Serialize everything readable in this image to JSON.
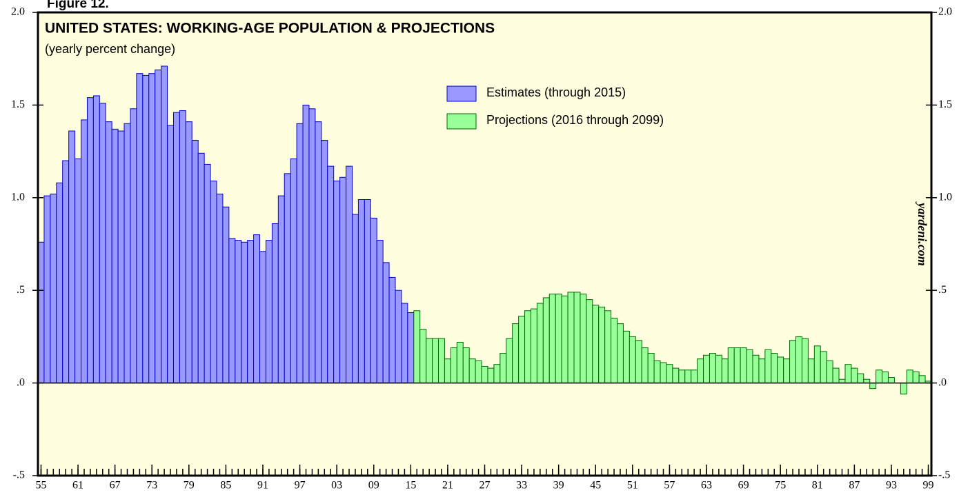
{
  "figure_label": "Figure 12.",
  "chart_data": {
    "type": "bar",
    "title": "UNITED STATES: WORKING-AGE POPULATION & PROJECTIONS",
    "subtitle": "(yearly percent change)",
    "watermark": "yardeni.com",
    "x": [
      1955,
      1956,
      1957,
      1958,
      1959,
      1960,
      1961,
      1962,
      1963,
      1964,
      1965,
      1966,
      1967,
      1968,
      1969,
      1970,
      1971,
      1972,
      1973,
      1974,
      1975,
      1976,
      1977,
      1978,
      1979,
      1980,
      1981,
      1982,
      1983,
      1984,
      1985,
      1986,
      1987,
      1988,
      1989,
      1990,
      1991,
      1992,
      1993,
      1994,
      1995,
      1996,
      1997,
      1998,
      1999,
      2000,
      2001,
      2002,
      2003,
      2004,
      2005,
      2006,
      2007,
      2008,
      2009,
      2010,
      2011,
      2012,
      2013,
      2014,
      2015,
      2016,
      2017,
      2018,
      2019,
      2020,
      2021,
      2022,
      2023,
      2024,
      2025,
      2026,
      2027,
      2028,
      2029,
      2030,
      2031,
      2032,
      2033,
      2034,
      2035,
      2036,
      2037,
      2038,
      2039,
      2040,
      2041,
      2042,
      2043,
      2044,
      2045,
      2046,
      2047,
      2048,
      2049,
      2050,
      2051,
      2052,
      2053,
      2054,
      2055,
      2056,
      2057,
      2058,
      2059,
      2060,
      2061,
      2062,
      2063,
      2064,
      2065,
      2066,
      2067,
      2068,
      2069,
      2070,
      2071,
      2072,
      2073,
      2074,
      2075,
      2076,
      2077,
      2078,
      2079,
      2080,
      2081,
      2082,
      2083,
      2084,
      2085,
      2086,
      2087,
      2088,
      2089,
      2090,
      2091,
      2092,
      2093,
      2094,
      2095,
      2096,
      2097,
      2098,
      2099
    ],
    "series": [
      {
        "name": "Estimates (through 2015)",
        "color": "#9999ff",
        "edge": "#0000cc",
        "values": [
          0.76,
          1.01,
          1.02,
          1.08,
          1.2,
          1.36,
          1.21,
          1.42,
          1.54,
          1.55,
          1.51,
          1.41,
          1.37,
          1.36,
          1.4,
          1.48,
          1.67,
          1.66,
          1.67,
          1.69,
          1.71,
          1.39,
          1.46,
          1.47,
          1.41,
          1.31,
          1.24,
          1.18,
          1.09,
          1.02,
          0.95,
          0.78,
          0.77,
          0.76,
          0.77,
          0.8,
          0.71,
          0.77,
          0.86,
          1.01,
          1.13,
          1.21,
          1.4,
          1.5,
          1.48,
          1.41,
          1.31,
          1.17,
          1.09,
          1.11,
          1.17,
          0.91,
          0.99,
          0.99,
          0.89,
          0.77,
          0.65,
          0.57,
          0.5,
          0.43,
          0.38,
          null,
          null,
          null,
          null,
          null,
          null,
          null,
          null,
          null,
          null,
          null,
          null,
          null,
          null,
          null,
          null,
          null,
          null,
          null,
          null,
          null,
          null,
          null,
          null,
          null,
          null,
          null,
          null,
          null,
          null,
          null,
          null,
          null,
          null,
          null,
          null,
          null,
          null,
          null,
          null,
          null,
          null,
          null,
          null,
          null,
          null,
          null,
          null,
          null,
          null,
          null,
          null,
          null,
          null,
          null,
          null,
          null,
          null,
          null,
          null,
          null,
          null,
          null,
          null,
          null,
          null,
          null,
          null,
          null,
          null,
          null,
          null,
          null,
          null,
          null,
          null,
          null,
          null,
          null,
          null,
          null,
          null,
          null,
          null
        ]
      },
      {
        "name": "Projections (2016 through 2099)",
        "color": "#99ff99",
        "edge": "#006600",
        "values": [
          null,
          null,
          null,
          null,
          null,
          null,
          null,
          null,
          null,
          null,
          null,
          null,
          null,
          null,
          null,
          null,
          null,
          null,
          null,
          null,
          null,
          null,
          null,
          null,
          null,
          null,
          null,
          null,
          null,
          null,
          null,
          null,
          null,
          null,
          null,
          null,
          null,
          null,
          null,
          null,
          null,
          null,
          null,
          null,
          null,
          null,
          null,
          null,
          null,
          null,
          null,
          null,
          null,
          null,
          null,
          null,
          null,
          null,
          null,
          null,
          null,
          0.39,
          0.29,
          0.24,
          0.24,
          0.24,
          0.13,
          0.19,
          0.22,
          0.19,
          0.13,
          0.12,
          0.09,
          0.08,
          0.1,
          0.16,
          0.24,
          0.32,
          0.36,
          0.39,
          0.4,
          0.43,
          0.46,
          0.48,
          0.48,
          0.47,
          0.49,
          0.49,
          0.48,
          0.45,
          0.42,
          0.41,
          0.39,
          0.35,
          0.32,
          0.28,
          0.25,
          0.23,
          0.19,
          0.16,
          0.12,
          0.11,
          0.1,
          0.08,
          0.07,
          0.07,
          0.07,
          0.13,
          0.15,
          0.16,
          0.15,
          0.13,
          0.19,
          0.19,
          0.19,
          0.18,
          0.15,
          0.13,
          0.18,
          0.16,
          0.14,
          0.13,
          0.23,
          0.25,
          0.24,
          0.13,
          0.2,
          0.17,
          0.12,
          0.08,
          0.02,
          0.1,
          0.08,
          0.05,
          0.02,
          -0.03,
          0.07,
          0.06,
          0.03,
          0.0,
          -0.06,
          0.07,
          0.06,
          0.04,
          0.01
        ]
      }
    ],
    "xlim": [
      1954.5,
      2099.5
    ],
    "xticks": [
      {
        "value": 1955,
        "label": "55"
      },
      {
        "value": 1961,
        "label": "61"
      },
      {
        "value": 1967,
        "label": "67"
      },
      {
        "value": 1973,
        "label": "73"
      },
      {
        "value": 1979,
        "label": "79"
      },
      {
        "value": 1985,
        "label": "85"
      },
      {
        "value": 1991,
        "label": "91"
      },
      {
        "value": 1997,
        "label": "97"
      },
      {
        "value": 2003,
        "label": "03"
      },
      {
        "value": 2009,
        "label": "09"
      },
      {
        "value": 2015,
        "label": "15"
      },
      {
        "value": 2021,
        "label": "21"
      },
      {
        "value": 2027,
        "label": "27"
      },
      {
        "value": 2033,
        "label": "33"
      },
      {
        "value": 2039,
        "label": "39"
      },
      {
        "value": 2045,
        "label": "45"
      },
      {
        "value": 2051,
        "label": "51"
      },
      {
        "value": 2057,
        "label": "57"
      },
      {
        "value": 2063,
        "label": "63"
      },
      {
        "value": 2069,
        "label": "69"
      },
      {
        "value": 2075,
        "label": "75"
      },
      {
        "value": 2081,
        "label": "81"
      },
      {
        "value": 2087,
        "label": "87"
      },
      {
        "value": 2093,
        "label": "93"
      },
      {
        "value": 2099,
        "label": "99"
      }
    ],
    "ylim": [
      -0.5,
      2.0
    ],
    "yticks": [
      {
        "value": 2.0,
        "label": "2.0"
      },
      1.5,
      {
        "value": 1.0,
        "label": "1.0"
      },
      {
        "value": 0.5,
        "label": ".5"
      },
      {
        "value": 0,
        "label": ".0"
      },
      {
        "value": -0.5,
        "label": "-.5"
      }
    ],
    "background": "#ffffe0",
    "legend": "upper right"
  }
}
